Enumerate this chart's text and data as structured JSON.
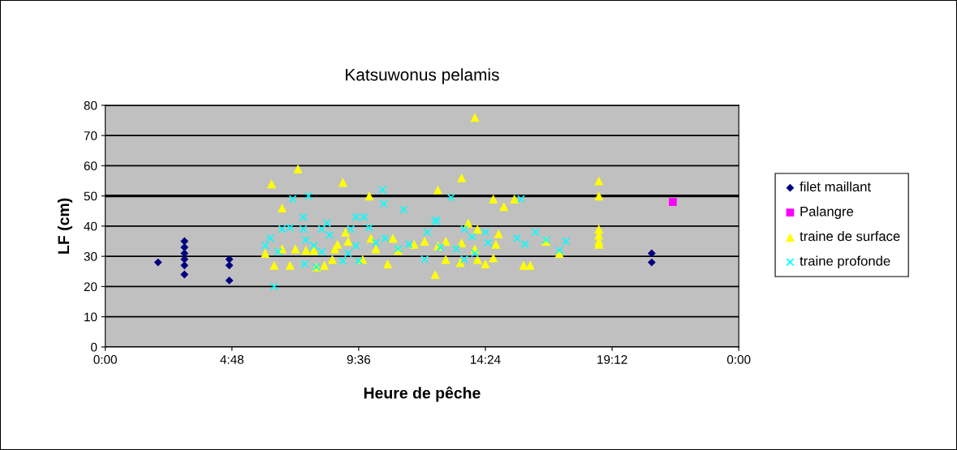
{
  "chart_data": {
    "type": "scatter",
    "title": "Katsuwonus pelamis",
    "xlabel": "Heure de pêche",
    "ylabel": "LF (cm)",
    "xlim": [
      0,
      24
    ],
    "xticks": [
      {
        "value": 0,
        "label": "0:00"
      },
      {
        "value": 4.8,
        "label": "4:48"
      },
      {
        "value": 9.6,
        "label": "9:36"
      },
      {
        "value": 14.4,
        "label": "14:24"
      },
      {
        "value": 19.2,
        "label": "19:12"
      },
      {
        "value": 24,
        "label": "0:00"
      }
    ],
    "ylim": [
      0,
      80
    ],
    "yticks": [
      0,
      10,
      20,
      30,
      40,
      50,
      60,
      70,
      80
    ],
    "grid": "y",
    "legend": "right",
    "ref_lines": [
      {
        "axis": "y",
        "value": 50,
        "color": "#000000"
      }
    ],
    "series": [
      {
        "name": "filet maillant",
        "color": "#000080",
        "marker": "diamond",
        "x": [
          2.0,
          3.0,
          3.0,
          3.0,
          3.0,
          3.0,
          3.0,
          4.7,
          4.7,
          4.7,
          20.7,
          20.7
        ],
        "values": [
          28,
          35,
          33,
          31,
          29,
          27,
          24,
          29,
          27,
          22,
          31,
          28
        ]
      },
      {
        "name": "Palangre",
        "color": "#ff00ff",
        "marker": "square",
        "x": [
          21.5
        ],
        "values": [
          48
        ]
      },
      {
        "name": "traine de surface",
        "color": "#ffff00",
        "marker": "triangle",
        "x": [
          6.3,
          7.3,
          6.7,
          6.06,
          6.4,
          7.0,
          9.0,
          10.0,
          12.6,
          10.7,
          12.5,
          8.0,
          8.3,
          8.6,
          8.8,
          9.1,
          9.2,
          9.75,
          10.06,
          10.25,
          10.9,
          11.1,
          11.7,
          12.1,
          6.7,
          7.2,
          7.6,
          7.9,
          8.7,
          14.0,
          13.5,
          14.7,
          15.5,
          15.1,
          18.7,
          18.7,
          18.7,
          18.7,
          18.7,
          18.7,
          15.85,
          16.1,
          17.2,
          16.7,
          14.9,
          14.8,
          14.4,
          14.7,
          14.1,
          14.0,
          14.1,
          13.75,
          13.45,
          13.5,
          12.9,
          12.9,
          12.6
        ],
        "values": [
          54,
          59,
          46,
          31,
          27,
          27,
          54.5,
          50,
          52,
          27.5,
          24,
          26.5,
          27,
          29,
          34,
          38,
          35,
          29,
          36,
          32.5,
          36,
          32,
          34,
          35,
          32.5,
          32.5,
          32,
          32,
          32.5,
          76,
          56,
          49,
          49,
          46.5,
          55,
          50,
          39,
          37,
          35,
          34,
          27,
          27,
          31,
          35,
          37.5,
          34,
          27.5,
          29.5,
          29,
          32.5,
          39,
          41,
          28,
          34.5,
          29,
          35,
          33.5
        ]
      },
      {
        "name": "traine profonde",
        "color": "#00ffff",
        "marker": "cross",
        "x": [
          6.4,
          7.1,
          6.06,
          6.7,
          7.7,
          7.5,
          7.0,
          7.5,
          8.4,
          8.5,
          8.2,
          9.5,
          9.8,
          10.5,
          10.55,
          11.3,
          10.0,
          9.3,
          12.5,
          12.2,
          7.55,
          8.0,
          9.0,
          9.6,
          12.1,
          6.25,
          6.55,
          7.6,
          7.9,
          8.2,
          9.2,
          9.5,
          10.25,
          10.6,
          11.1,
          11.5,
          13.1,
          15.75,
          12.55,
          13.6,
          14.4,
          16.3,
          17.45,
          17.2,
          15.6,
          15.9,
          16.7,
          14.5,
          13.9,
          13.3,
          12.7,
          13.6,
          14.0
        ],
        "values": [
          20,
          49,
          33.5,
          39,
          50,
          43,
          39.5,
          39,
          41,
          37,
          39,
          43,
          43,
          52,
          47.5,
          45.5,
          39.5,
          39,
          42,
          38,
          27.5,
          26.5,
          28.5,
          28.5,
          29,
          36,
          31.5,
          35.5,
          33.5,
          31.5,
          31,
          33.5,
          34.5,
          36,
          32.5,
          34,
          49.5,
          49,
          41.5,
          39,
          38,
          38,
          35,
          32,
          36,
          34,
          35.5,
          34.5,
          36.5,
          32.5,
          33,
          29,
          31
        ]
      }
    ]
  }
}
